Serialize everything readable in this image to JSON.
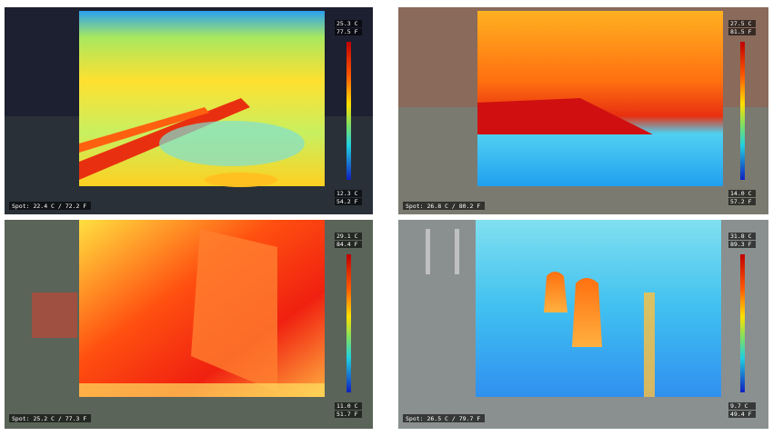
{
  "panels": [
    {
      "scale_top_c": "25.3 C",
      "scale_top_f": "77.5 F",
      "scale_bottom_c": "12.3 C",
      "scale_bottom_f": "54.2 F",
      "spot": "Spot: 22.4 C / 72.2 F"
    },
    {
      "scale_top_c": "27.5 C",
      "scale_top_f": "81.5 F",
      "scale_bottom_c": "14.0 C",
      "scale_bottom_f": "57.2 F",
      "spot": "Spot: 26.8 C / 80.2 F"
    },
    {
      "scale_top_c": "29.1 C",
      "scale_top_f": "84.4 F",
      "scale_bottom_c": "11.0 C",
      "scale_bottom_f": "51.7 F",
      "spot": "Spot: 25.2 C / 77.3 F"
    },
    {
      "scale_top_c": "31.8 C",
      "scale_top_f": "89.3 F",
      "scale_bottom_c": "9.7 C",
      "scale_bottom_f": "49.4 F",
      "spot": "Spot: 26.5 C / 79.7 F"
    }
  ]
}
